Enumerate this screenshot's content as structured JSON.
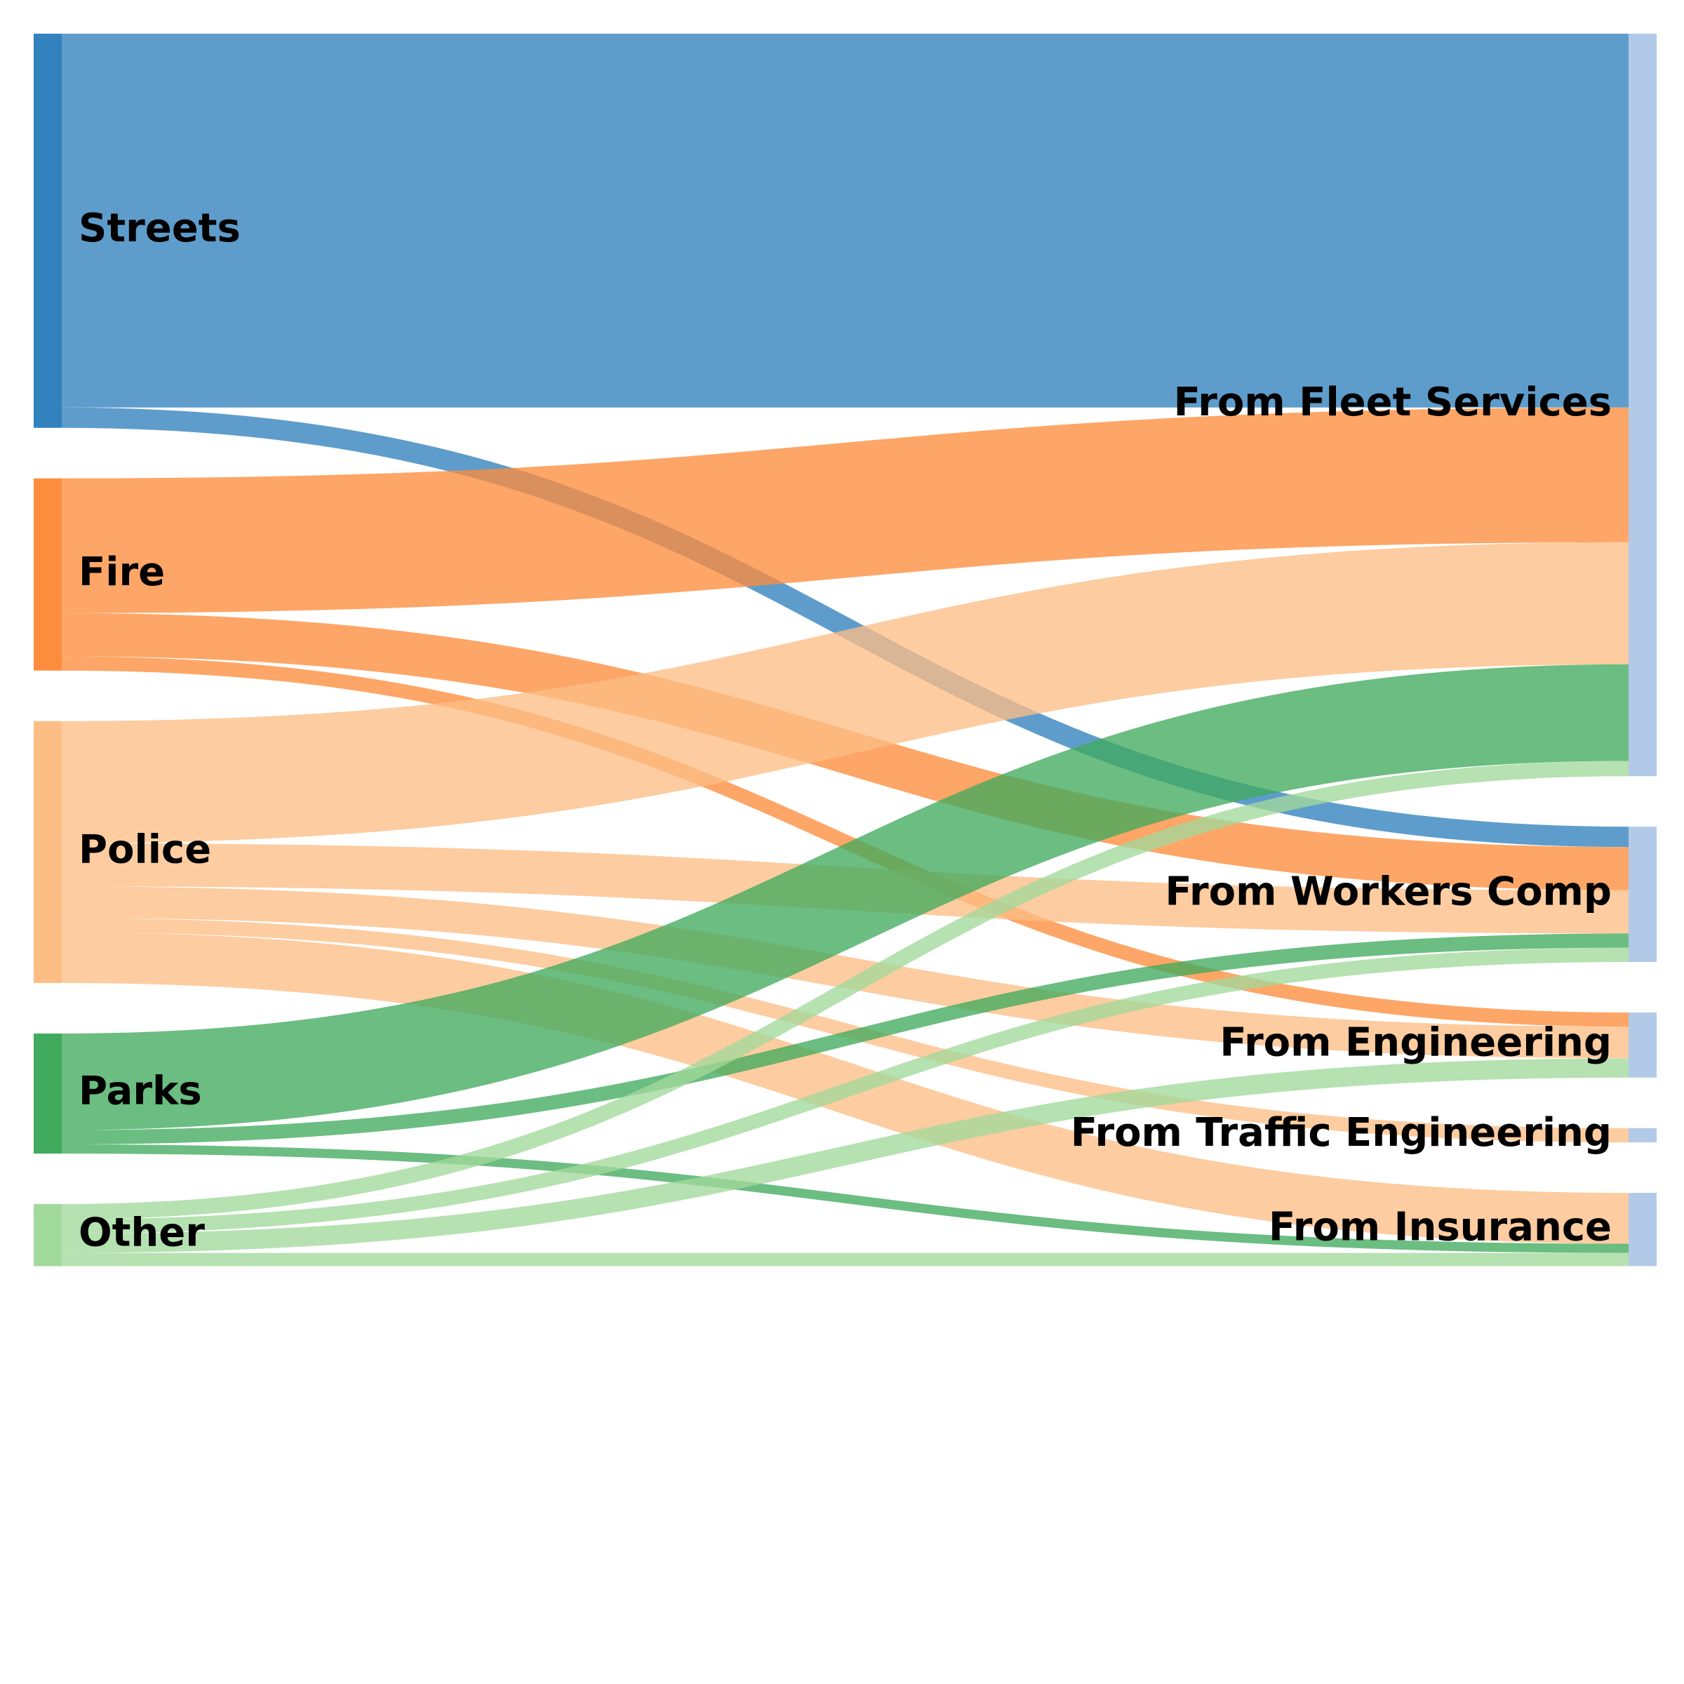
{
  "chart_data": {
    "type": "sankey",
    "title": "",
    "sources": [
      {
        "name": "Streets",
        "color": "#3182bd"
      },
      {
        "name": "Fire",
        "color": "#fd8d3c"
      },
      {
        "name": "Police",
        "color": "#fdbe85"
      },
      {
        "name": "Parks",
        "color": "#41ab5d"
      },
      {
        "name": "Other",
        "color": "#a1d99b"
      }
    ],
    "targets": [
      {
        "name": "From Fleet Services",
        "color": "#b3c9e8"
      },
      {
        "name": "From Workers Comp",
        "color": "#b3c9e8"
      },
      {
        "name": "From Engineering",
        "color": "#b3c9e8"
      },
      {
        "name": "From Traffic Engineering",
        "color": "#b3c9e8"
      },
      {
        "name": "From Insurance",
        "color": "#b3c9e8"
      }
    ],
    "links": [
      {
        "source": "Streets",
        "target": "From Fleet Services",
        "value": 735
      },
      {
        "source": "Streets",
        "target": "From Workers Comp",
        "value": 40
      },
      {
        "source": "Fire",
        "target": "From Fleet Services",
        "value": 265
      },
      {
        "source": "Fire",
        "target": "From Workers Comp",
        "value": 85
      },
      {
        "source": "Fire",
        "target": "From Engineering",
        "value": 28
      },
      {
        "source": "Police",
        "target": "From Fleet Services",
        "value": 240
      },
      {
        "source": "Police",
        "target": "From Workers Comp",
        "value": 85
      },
      {
        "source": "Police",
        "target": "From Engineering",
        "value": 62
      },
      {
        "source": "Police",
        "target": "From Traffic Engineering",
        "value": 28
      },
      {
        "source": "Police",
        "target": "From Insurance",
        "value": 100
      },
      {
        "source": "Parks",
        "target": "From Fleet Services",
        "value": 190
      },
      {
        "source": "Parks",
        "target": "From Workers Comp",
        "value": 28
      },
      {
        "source": "Parks",
        "target": "From Insurance",
        "value": 18
      },
      {
        "source": "Other",
        "target": "From Fleet Services",
        "value": 30
      },
      {
        "source": "Other",
        "target": "From Workers Comp",
        "value": 28
      },
      {
        "source": "Other",
        "target": "From Engineering",
        "value": 38
      },
      {
        "source": "Other",
        "target": "From Insurance",
        "value": 26
      }
    ]
  }
}
